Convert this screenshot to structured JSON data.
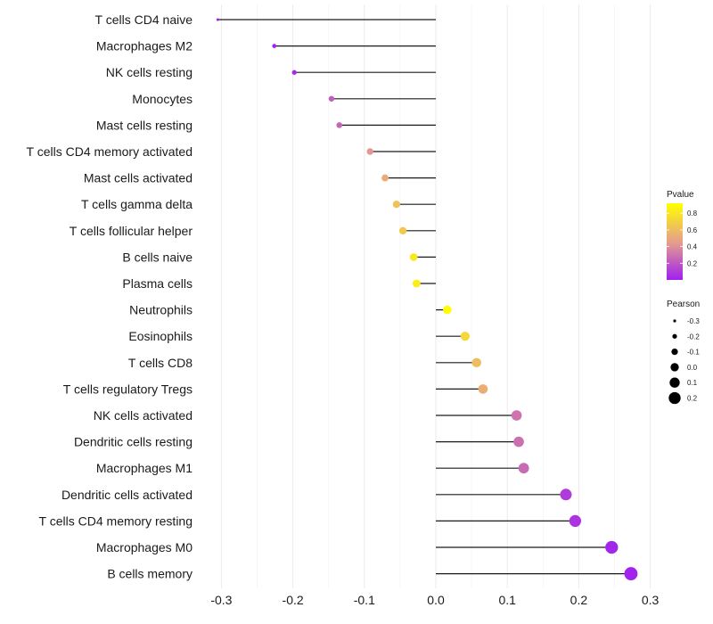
{
  "chart_data": {
    "type": "lollipop",
    "title": "",
    "xlabel": "",
    "ylabel": "",
    "xlim": [
      -0.32,
      0.32
    ],
    "x_ticks": [
      -0.3,
      -0.2,
      -0.1,
      0.0,
      0.1,
      0.2,
      0.3
    ],
    "x_tick_labels": [
      "-0.3",
      "-0.2",
      "-0.1",
      "0.0",
      "0.1",
      "0.2",
      "0.3"
    ],
    "grid": "vertical",
    "categories": [
      "T cells CD4 naive",
      "Macrophages M2",
      "NK cells resting",
      "Monocytes",
      "Mast cells resting",
      "T cells CD4 memory activated",
      "Mast cells activated",
      "T cells gamma delta",
      "T cells follicular helper",
      "B cells naive",
      "Plasma cells",
      "Neutrophils",
      "Eosinophils",
      "T cells CD8",
      "T cells regulatory  Tregs ",
      "NK cells activated",
      "Dendritic cells resting",
      "Macrophages M1",
      "Dendritic cells activated",
      "T cells CD4 memory resting",
      "Macrophages M0",
      "B cells memory"
    ],
    "pearson": [
      -0.305,
      -0.226,
      -0.198,
      -0.146,
      -0.135,
      -0.092,
      -0.071,
      -0.055,
      -0.046,
      -0.031,
      -0.027,
      0.016,
      0.041,
      0.057,
      0.066,
      0.113,
      0.116,
      0.123,
      0.182,
      0.195,
      0.246,
      0.273
    ],
    "pvalue": [
      0.0,
      0.01,
      0.04,
      0.22,
      0.25,
      0.43,
      0.52,
      0.62,
      0.66,
      0.81,
      0.84,
      0.92,
      0.73,
      0.6,
      0.53,
      0.3,
      0.29,
      0.27,
      0.1,
      0.07,
      0.02,
      0.01
    ],
    "legend": {
      "position": "right",
      "color": {
        "title": "Pvalue",
        "ticks": [
          0.2,
          0.4,
          0.6,
          0.8
        ],
        "tick_labels": [
          "0.2",
          "0.4",
          "0.6",
          "0.8"
        ],
        "range": [
          0.0,
          0.92
        ],
        "low_color": "#A020F0",
        "mid_color": "#E6A08A",
        "high_color": "#FFFF00"
      },
      "size": {
        "title": "Pearson",
        "values": [
          -0.3,
          -0.2,
          -0.1,
          0.0,
          0.1,
          0.2
        ],
        "labels": [
          "-0.3",
          "-0.2",
          "-0.1",
          "0.0",
          "0.1",
          "0.2"
        ]
      }
    }
  }
}
